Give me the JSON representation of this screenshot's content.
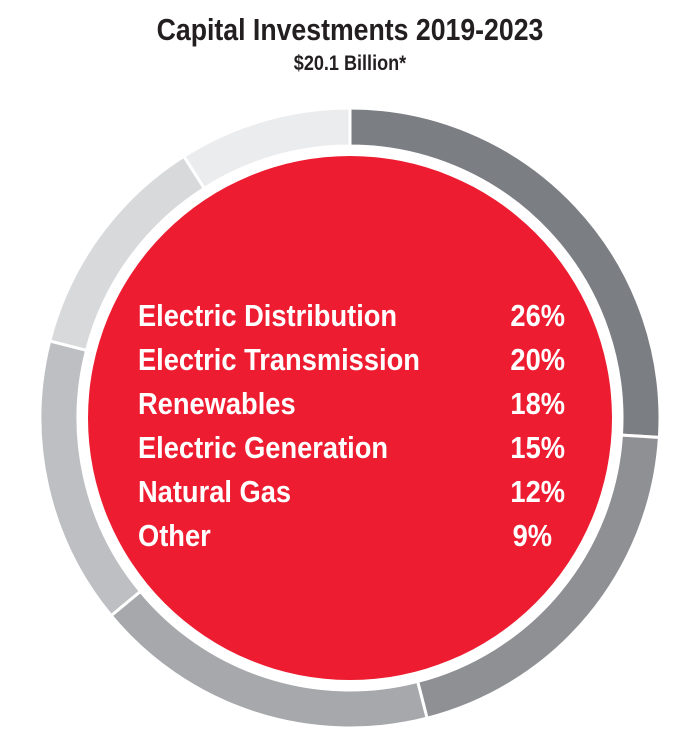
{
  "chart_data": {
    "type": "pie",
    "title": "Capital Investments 2019-2023",
    "subtitle": "$20.1 Billion*",
    "categories": [
      "Electric Distribution",
      "Electric Transmission",
      "Renewables",
      "Electric Generation",
      "Natural Gas",
      "Other"
    ],
    "values": [
      26,
      20,
      18,
      15,
      12,
      9
    ],
    "value_labels": [
      "26%",
      "20%",
      "18%",
      "15%",
      "12%",
      "9%"
    ],
    "colors": [
      "#7b7e83",
      "#8e9094",
      "#a6a8ac",
      "#bdbfc2",
      "#d8d9db",
      "#ebecee"
    ],
    "center_color": "#ed1c30",
    "legend_placement": "center"
  }
}
